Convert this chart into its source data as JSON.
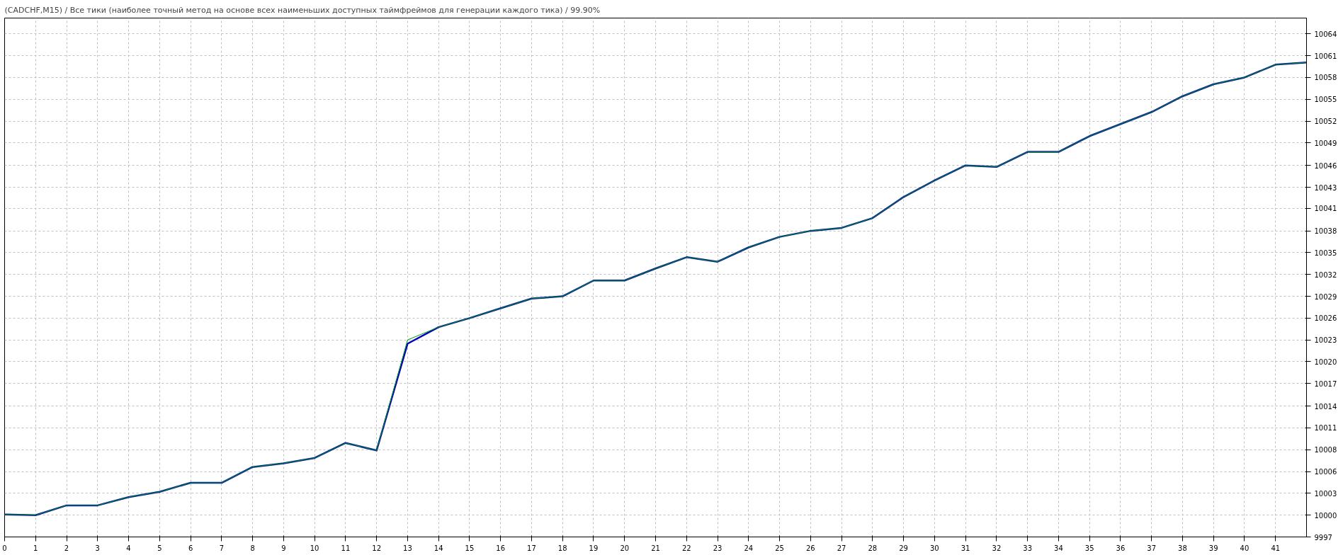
{
  "chart_data": {
    "type": "line",
    "title": "(CADCHF,M15) / Все тики (наиболее точный метод на основе всех наименьших доступных таймфреймов для генерации каждого тика) / 99.90%",
    "x": [
      0,
      1,
      2,
      3,
      4,
      5,
      6,
      7,
      8,
      9,
      10,
      11,
      12,
      13,
      14,
      15,
      16,
      17,
      18,
      19,
      20,
      21,
      22,
      23,
      24,
      25,
      26,
      27,
      28,
      29,
      30,
      31,
      32,
      33,
      34,
      35,
      36,
      37,
      38,
      39,
      40,
      41,
      42
    ],
    "series": [
      {
        "color": "#0000c0",
        "values": [
          9999.8,
          9999.7,
          10001.0,
          10001.0,
          10002.1,
          10002.8,
          10004.0,
          10004.0,
          10006.1,
          10006.6,
          10007.3,
          10009.3,
          10008.3,
          10022.5,
          10024.7,
          10025.9,
          10027.2,
          10028.5,
          10028.8,
          10030.9,
          10030.9,
          10032.5,
          10034.0,
          10033.4,
          10035.3,
          10036.7,
          10037.5,
          10037.9,
          10039.2,
          10042.0,
          10044.2,
          10046.2,
          10046.0,
          10048.0,
          10048.0,
          10050.1,
          10051.7,
          10053.3,
          10055.4,
          10057.0,
          10057.9,
          10059.6,
          10059.9
        ]
      },
      {
        "color": "#00a000",
        "values": [
          9999.8,
          9999.7,
          10001.0,
          10001.0,
          10002.1,
          10002.8,
          10004.0,
          10004.0,
          10006.1,
          10006.6,
          10007.3,
          10009.3,
          10008.3,
          10023.0,
          10024.7,
          10025.9,
          10027.2,
          10028.5,
          10028.8,
          10030.9,
          10030.9,
          10032.5,
          10034.0,
          10033.4,
          10035.3,
          10036.7,
          10037.5,
          10037.9,
          10039.2,
          10042.0,
          10044.2,
          10046.2,
          10046.0,
          10048.0,
          10048.0,
          10050.1,
          10051.7,
          10053.3,
          10055.4,
          10057.0,
          10057.9,
          10059.6,
          10059.9
        ]
      }
    ],
    "xlim": [
      0,
      42
    ],
    "xticks": [
      0,
      1,
      2,
      3,
      4,
      5,
      6,
      7,
      8,
      9,
      10,
      11,
      12,
      13,
      14,
      15,
      16,
      17,
      18,
      19,
      20,
      21,
      22,
      23,
      24,
      25,
      26,
      27,
      28,
      29,
      30,
      31,
      32,
      33,
      34,
      35,
      36,
      37,
      38,
      39,
      40,
      41
    ],
    "ylim": [
      9996.8,
      10065.8
    ],
    "yticks": [
      {
        "value": 9996.8,
        "label": "9997"
      },
      {
        "value": 9999.7,
        "label": "10000"
      },
      {
        "value": 10002.6,
        "label": "10003"
      },
      {
        "value": 10005.5,
        "label": "10006"
      },
      {
        "value": 10008.4,
        "label": "10008"
      },
      {
        "value": 10011.3,
        "label": "10011"
      },
      {
        "value": 10014.2,
        "label": "10014"
      },
      {
        "value": 10017.2,
        "label": "10017"
      },
      {
        "value": 10020.1,
        "label": "10020"
      },
      {
        "value": 10023.0,
        "label": "10023"
      },
      {
        "value": 10025.9,
        "label": "10026"
      },
      {
        "value": 10028.8,
        "label": "10029"
      },
      {
        "value": 10031.7,
        "label": "10032"
      },
      {
        "value": 10034.6,
        "label": "10035"
      },
      {
        "value": 10037.5,
        "label": "10038"
      },
      {
        "value": 10040.5,
        "label": "10041"
      },
      {
        "value": 10043.3,
        "label": "10043"
      },
      {
        "value": 10046.2,
        "label": "10046"
      },
      {
        "value": 10049.2,
        "label": "10049"
      },
      {
        "value": 10052.1,
        "label": "10052"
      },
      {
        "value": 10055.0,
        "label": "10055"
      },
      {
        "value": 10057.9,
        "label": "10058"
      },
      {
        "value": 10060.8,
        "label": "10061"
      },
      {
        "value": 10063.7,
        "label": "10064"
      }
    ],
    "grid": true,
    "line_style": "solid",
    "marker": "none"
  }
}
